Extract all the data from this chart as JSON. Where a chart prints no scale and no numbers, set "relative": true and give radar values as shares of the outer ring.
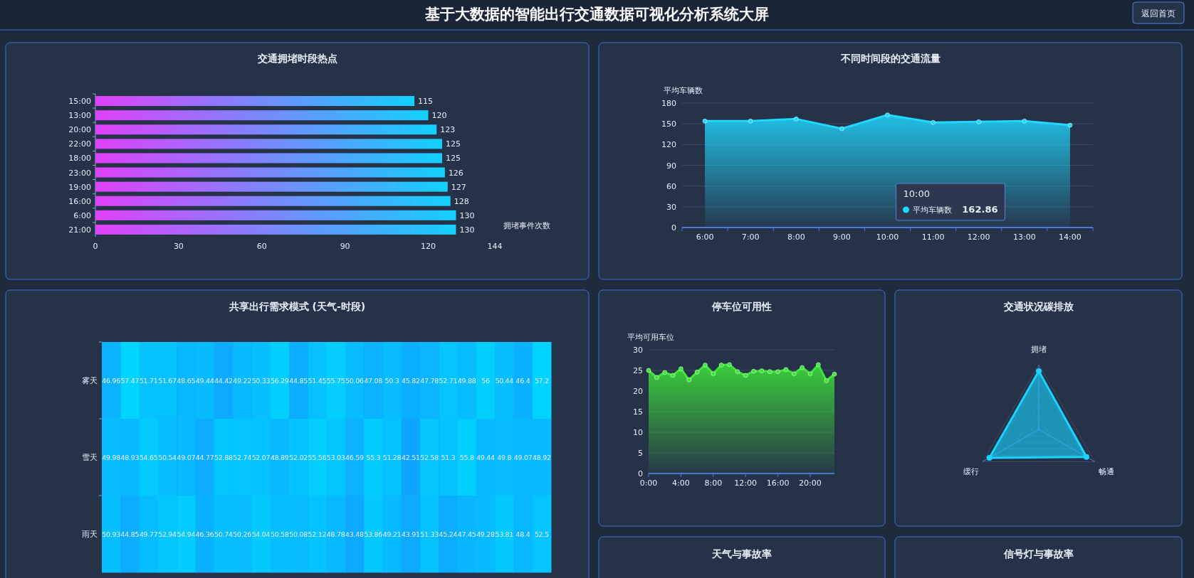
{
  "chart_data": [
    {
      "type": "other",
      "title": "基于大数据的智能出行交通数据可视化分析系统大屏",
      "annotations": [
        "返回首页"
      ]
    },
    {
      "type": "bar",
      "title": "交通拥堵时段热点",
      "orientation": "horizontal",
      "categories": [
        "15:00",
        "13:00",
        "20:00",
        "22:00",
        "18:00",
        "23:00",
        "19:00",
        "16:00",
        "6:00",
        "21:00"
      ],
      "values": [
        115,
        120,
        123,
        125,
        125,
        126,
        127,
        128,
        130,
        130
      ],
      "color": "#12d0ff",
      "xlim": [
        0,
        144
      ],
      "xticks": [
        0,
        30,
        60,
        90,
        120,
        144
      ],
      "xlabel": "拥堵事件次数",
      "data_labels": true
    },
    {
      "type": "area",
      "title": "不同时间段的交通流量",
      "ylabel": "平均车辆数",
      "categories": [
        "6:00",
        "7:00",
        "8:00",
        "9:00",
        "10:00",
        "11:00",
        "12:00",
        "13:00",
        "14:00"
      ],
      "series": [
        {
          "name": "平均车辆数",
          "color": "#1fd8ff",
          "values": [
            154,
            154,
            157,
            143,
            162.86,
            152,
            153,
            154,
            148
          ]
        }
      ],
      "annotations": [
        "10:00",
        "162.86"
      ],
      "ylim": [
        0,
        180
      ],
      "yticks": [
        0,
        30,
        60,
        90,
        120,
        150,
        180
      ],
      "grid": "y",
      "marker": "circle"
    },
    {
      "type": "heatmap",
      "title": "共享出行需求模式 (天气-时段)",
      "categories": [
        null,
        null,
        null,
        null,
        null,
        null,
        null,
        null,
        null,
        null,
        null,
        null,
        null,
        null,
        null,
        null,
        null,
        null,
        null,
        null,
        null,
        null,
        null,
        null
      ],
      "y_categories": [
        "雾天",
        "雪天",
        "雨天"
      ],
      "cells": [
        [
          46.96,
          57.47,
          51.71,
          51.67,
          48.65,
          49.44,
          44.42,
          49.22,
          50.33,
          56.29,
          44.85,
          51.45,
          55.75,
          50.06,
          47.08,
          50.3,
          45.82,
          47.78,
          52.71,
          49.88,
          56,
          50.44,
          46.4,
          57.2
        ],
        [
          49.98,
          48.93,
          54.65,
          50.54,
          49.07,
          44.77,
          52.88,
          52.74,
          52.07,
          48.89,
          52.02,
          55.56,
          53.03,
          46.59,
          55.3,
          51.28,
          42.51,
          52.58,
          51.3,
          55.8,
          49.44,
          49.8,
          49.07,
          48.92
        ],
        [
          50.93,
          44.85,
          49.77,
          52.94,
          54.94,
          46.36,
          50.74,
          50.26,
          54.04,
          50.58,
          50.08,
          52.12,
          48.78,
          43.48,
          53.86,
          49.21,
          43.91,
          51.33,
          45.24,
          47.45,
          49.28,
          53.81,
          48.4,
          52.5
        ]
      ],
      "data_labels": true,
      "tick_labels": "y"
    },
    {
      "type": "area",
      "title": "停车位可用性",
      "ylabel": "平均可用车位",
      "x": [
        0,
        1,
        2,
        3,
        4,
        5,
        6,
        7,
        8,
        9,
        10,
        11,
        12,
        13,
        14,
        15,
        16,
        17,
        18,
        19,
        20,
        21,
        22,
        23
      ],
      "values": [
        25,
        23.3,
        24.5,
        23.8,
        25.4,
        22.7,
        24.6,
        26.3,
        24.2,
        26.3,
        26.4,
        24.7,
        23.8,
        24.8,
        24.9,
        24.7,
        24.7,
        25.2,
        24.2,
        25.7,
        24.2,
        26.4,
        22.5,
        24.1
      ],
      "color": "#3ee63a",
      "xlim": [
        0,
        23
      ],
      "xticks": [
        {
          "value": 0,
          "label": "0:00"
        },
        {
          "value": 4,
          "label": "4:00"
        },
        {
          "value": 8,
          "label": "8:00"
        },
        {
          "value": 12,
          "label": "12:00"
        },
        {
          "value": 16,
          "label": "16:00"
        },
        {
          "value": 20,
          "label": "20:00"
        }
      ],
      "ylim": [
        0,
        30
      ],
      "yticks": [
        0,
        5,
        10,
        15,
        20,
        25,
        30
      ],
      "grid": "y",
      "marker": "circle"
    },
    {
      "type": "radar",
      "title": "交通状况碳排放",
      "categories": [
        "拥堵",
        "畅通",
        "缓行"
      ],
      "relative": true,
      "series": [
        {
          "color": "#18d4ff",
          "values": [
            0.9,
            0.85,
            0.88
          ]
        }
      ]
    },
    {
      "type": "other",
      "title": "天气与事故率"
    },
    {
      "type": "other",
      "title": "信号灯与事故率"
    }
  ]
}
